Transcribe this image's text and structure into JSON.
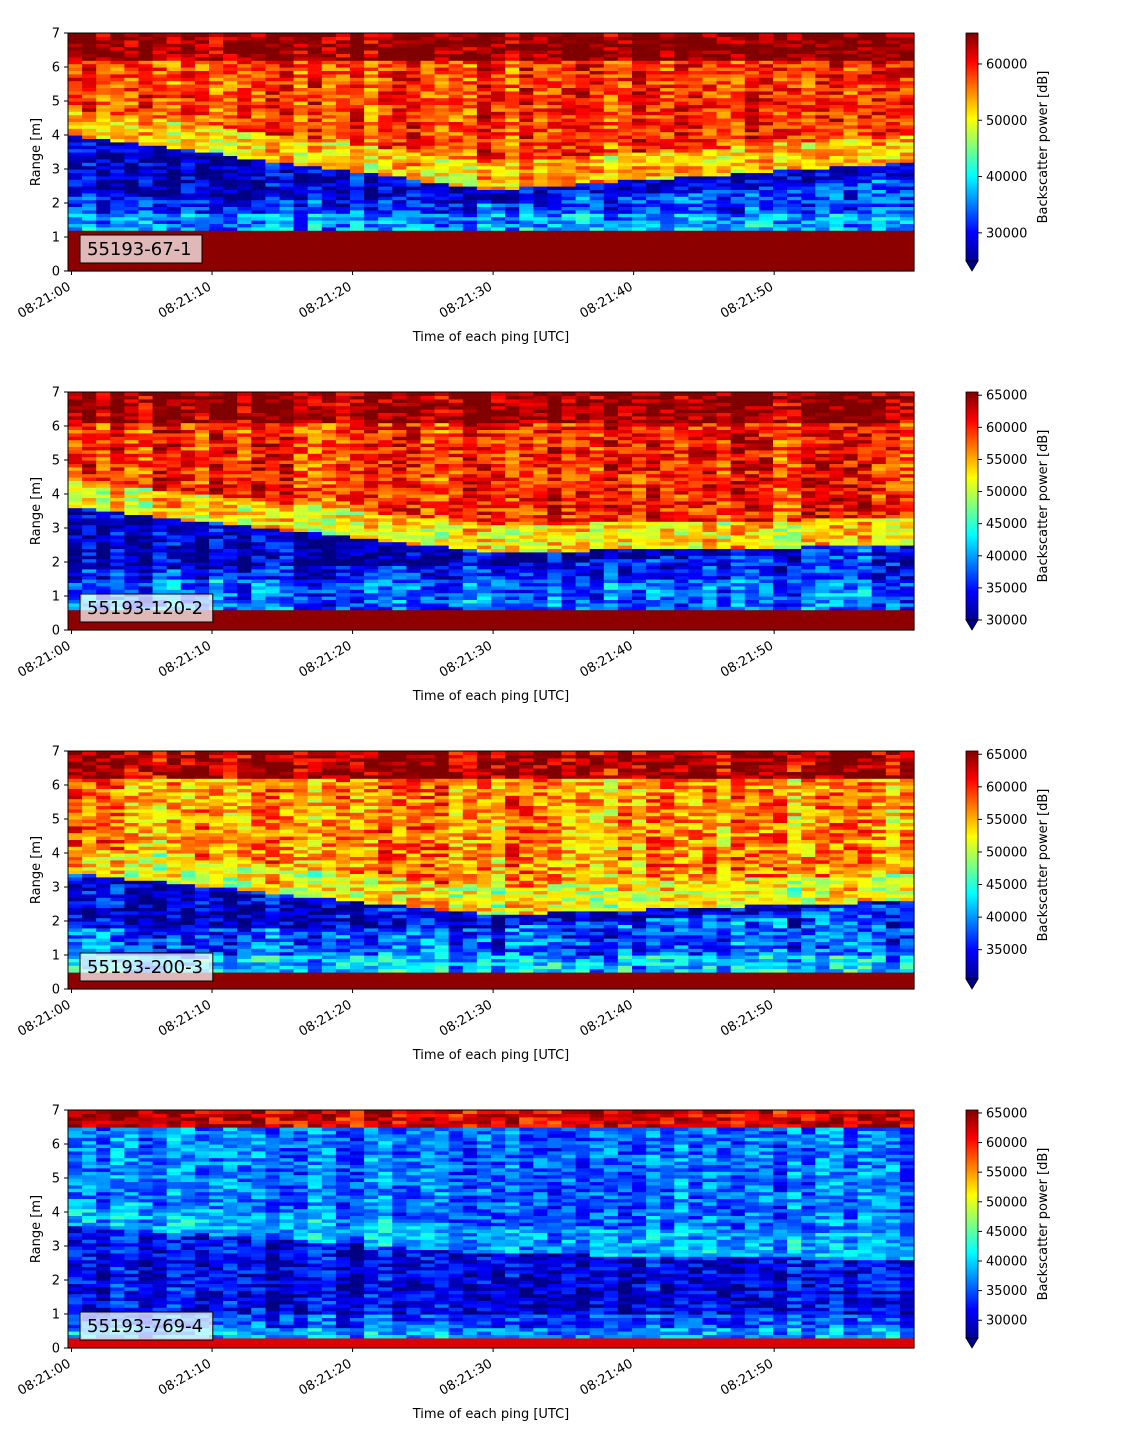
{
  "chart_data": [
    {
      "type": "heatmap",
      "annotation": "55193-67-1",
      "xlabel": "Time of each ping [UTC]",
      "ylabel": "Range [m]",
      "x_ticks": [
        "08:21:00",
        "08:21:10",
        "08:21:20",
        "08:21:30",
        "08:21:40",
        "08:21:50"
      ],
      "y_ticks": [
        0,
        1,
        2,
        3,
        4,
        5,
        6,
        7
      ],
      "ylim": [
        0,
        7
      ],
      "colorbar": {
        "label": "Backscatter power [dB]",
        "min": 25000,
        "max": 65500,
        "ticks": [
          30000,
          40000,
          50000,
          60000
        ],
        "extend": "min",
        "colormap": "jet"
      },
      "bands": {
        "bottom_strong_top": 1.2,
        "low_band_top": 1.7,
        "quiet_low_start": 2.2,
        "quiet_low_mid": 2.0,
        "quiet_low_end": 2.7,
        "quiet_high_start": 4.0,
        "quiet_high_mid": 2.4,
        "quiet_high_end": 3.2,
        "surface_start": 6.2
      },
      "intensity": {
        "bottom": 65000,
        "low_band": 36000,
        "quiet": 28000,
        "mid": 52000,
        "upper": 58000,
        "surface": 65000,
        "noise": 7000
      }
    },
    {
      "type": "heatmap",
      "annotation": "55193-120-2",
      "xlabel": "Time of each ping [UTC]",
      "ylabel": "Range [m]",
      "x_ticks": [
        "08:21:00",
        "08:21:10",
        "08:21:20",
        "08:21:30",
        "08:21:40",
        "08:21:50"
      ],
      "y_ticks": [
        0,
        1,
        2,
        3,
        4,
        5,
        6,
        7
      ],
      "ylim": [
        0,
        7
      ],
      "colorbar": {
        "label": "Backscatter power [dB]",
        "min": 30000,
        "max": 65500,
        "ticks": [
          30000,
          35000,
          40000,
          45000,
          50000,
          55000,
          60000,
          65000
        ],
        "extend": "min",
        "colormap": "jet"
      },
      "bands": {
        "bottom_strong_top": 0.6,
        "low_band_top": 1.5,
        "quiet_low_start": 1.8,
        "quiet_low_mid": 1.9,
        "quiet_low_end": 2.5,
        "quiet_high_start": 3.6,
        "quiet_high_mid": 2.3,
        "quiet_high_end": 2.5,
        "surface_start": 6.1
      },
      "intensity": {
        "bottom": 65000,
        "low_band": 38000,
        "quiet": 32000,
        "mid": 53000,
        "upper": 60000,
        "surface": 65000,
        "noise": 6500
      }
    },
    {
      "type": "heatmap",
      "annotation": "55193-200-3",
      "xlabel": "Time of each ping [UTC]",
      "ylabel": "Range [m]",
      "x_ticks": [
        "08:21:00",
        "08:21:10",
        "08:21:20",
        "08:21:30",
        "08:21:40",
        "08:21:50"
      ],
      "y_ticks": [
        0,
        1,
        2,
        3,
        4,
        5,
        6,
        7
      ],
      "ylim": [
        0,
        7
      ],
      "colorbar": {
        "label": "Backscatter power [dB]",
        "min": 30500,
        "max": 65500,
        "ticks": [
          35000,
          40000,
          45000,
          50000,
          55000,
          60000,
          65000
        ],
        "extend": "min",
        "colormap": "jet"
      },
      "bands": {
        "bottom_strong_top": 0.45,
        "low_band_top": 1.0,
        "quiet_low_start": 1.8,
        "quiet_low_mid": 1.8,
        "quiet_low_end": 2.5,
        "quiet_high_start": 3.4,
        "quiet_high_mid": 2.2,
        "quiet_high_end": 2.6,
        "surface_start": 6.2
      },
      "intensity": {
        "bottom": 65000,
        "low_band": 42000,
        "quiet": 33000,
        "mid": 52000,
        "upper": 56000,
        "surface": 64000,
        "noise": 7000
      }
    },
    {
      "type": "heatmap",
      "annotation": "55193-769-4",
      "xlabel": "Time of each ping [UTC]",
      "ylabel": "Range [m]",
      "x_ticks": [
        "08:21:00",
        "08:21:10",
        "08:21:20",
        "08:21:30",
        "08:21:40",
        "08:21:50"
      ],
      "y_ticks": [
        0,
        1,
        2,
        3,
        4,
        5,
        6,
        7
      ],
      "ylim": [
        0,
        7
      ],
      "colorbar": {
        "label": "Backscatter power [dB]",
        "min": 27000,
        "max": 65500,
        "ticks": [
          30000,
          35000,
          40000,
          45000,
          50000,
          55000,
          60000,
          65000
        ],
        "extend": "min",
        "colormap": "jet"
      },
      "bands": {
        "bottom_strong_top": 0.3,
        "low_band_top": 0.6,
        "quiet_low_start": 1.0,
        "quiet_low_mid": 1.0,
        "quiet_low_end": 1.0,
        "quiet_high_start": 3.6,
        "quiet_high_mid": 2.8,
        "quiet_high_end": 2.6,
        "surface_start": 6.5
      },
      "intensity": {
        "bottom": 62000,
        "low_band": 38000,
        "quiet": 31000,
        "mid": 38500,
        "upper": 36000,
        "surface": 62000,
        "noise": 6000
      }
    }
  ]
}
